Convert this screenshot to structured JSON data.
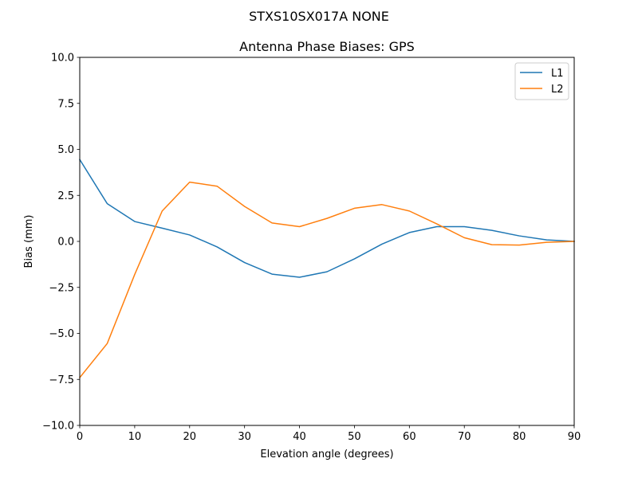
{
  "chart_data": {
    "type": "line",
    "suptitle": "STXS10SX017A    NONE",
    "title": "Antenna Phase Biases: GPS",
    "xlabel": "Elevation angle (degrees)",
    "ylabel": "Bias (mm)",
    "xlim": [
      0,
      90
    ],
    "ylim": [
      -10,
      10
    ],
    "xticks": [
      0,
      10,
      20,
      30,
      40,
      50,
      60,
      70,
      80,
      90
    ],
    "xtick_labels": [
      "0",
      "10",
      "20",
      "30",
      "40",
      "50",
      "60",
      "70",
      "80",
      "90"
    ],
    "yticks": [
      -10,
      -7.5,
      -5,
      -2.5,
      0,
      2.5,
      5,
      7.5,
      10
    ],
    "ytick_labels": [
      "−10.0",
      "−7.5",
      "−5.0",
      "−2.5",
      "0.0",
      "2.5",
      "5.0",
      "7.5",
      "10.0"
    ],
    "grid": false,
    "legend_position": "top-right",
    "x": [
      0,
      5,
      10,
      15,
      20,
      25,
      30,
      35,
      40,
      45,
      50,
      55,
      60,
      65,
      70,
      75,
      80,
      85,
      90
    ],
    "series": [
      {
        "name": "L1",
        "color": "#1f77b4",
        "values": [
          4.45,
          2.05,
          1.08,
          0.72,
          0.35,
          -0.3,
          -1.15,
          -1.78,
          -1.95,
          -1.65,
          -0.95,
          -0.15,
          0.48,
          0.8,
          0.8,
          0.6,
          0.3,
          0.08,
          0.0
        ]
      },
      {
        "name": "L2",
        "color": "#ff7f0e",
        "values": [
          -7.4,
          -5.55,
          -1.8,
          1.65,
          3.22,
          3.0,
          1.9,
          1.0,
          0.8,
          1.25,
          1.8,
          2.0,
          1.65,
          0.95,
          0.2,
          -0.18,
          -0.2,
          -0.05,
          0.0
        ]
      }
    ]
  }
}
